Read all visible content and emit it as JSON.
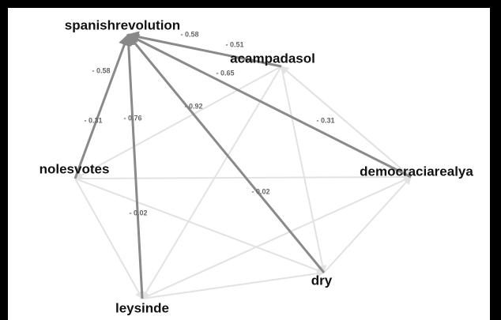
{
  "nodes": [
    {
      "label": "spanishrevolution"
    },
    {
      "label": "acampadasol"
    },
    {
      "label": "nolesvotes"
    },
    {
      "label": "democraciarealya"
    },
    {
      "label": "dry"
    },
    {
      "label": "leysinde"
    }
  ],
  "edges": [
    {
      "labels": [
        "- 0.58",
        "- 0.51"
      ]
    },
    {
      "labels": [
        "- 0.65",
        "- 0.31"
      ]
    },
    {
      "labels": [
        "- 0.92",
        "- 0.02"
      ]
    },
    {
      "labels": [
        "- 0.76",
        "- 0.02"
      ]
    },
    {
      "labels": [
        "- 0.58",
        "- 0.31"
      ]
    }
  ]
}
